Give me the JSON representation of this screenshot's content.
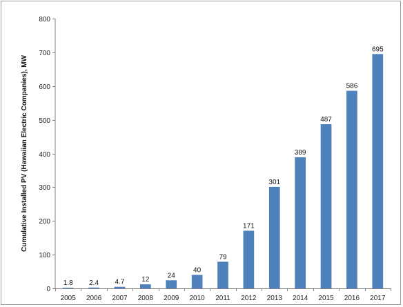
{
  "chart_data": {
    "type": "bar",
    "title": "",
    "xlabel": "",
    "ylabel": "Cumulative Installed PV (Hawaiian Electric Companies), MW",
    "categories": [
      "2005",
      "2006",
      "2007",
      "2008",
      "2009",
      "2010",
      "2011",
      "2012",
      "2013",
      "2014",
      "2015",
      "2016",
      "2017"
    ],
    "values": [
      1.8,
      2.4,
      4.7,
      12,
      24,
      40,
      79,
      171,
      301,
      389,
      487,
      586,
      695
    ],
    "data_labels": [
      "1.8",
      "2.4",
      "4.7",
      "12",
      "24",
      "40",
      "79",
      "171",
      "301",
      "389",
      "487",
      "586",
      "695"
    ],
    "ylim": [
      0,
      800
    ],
    "yticks": [
      0,
      100,
      200,
      300,
      400,
      500,
      600,
      700,
      800
    ],
    "grid": false,
    "legend": "none",
    "bar_color": "#4f81bd"
  }
}
